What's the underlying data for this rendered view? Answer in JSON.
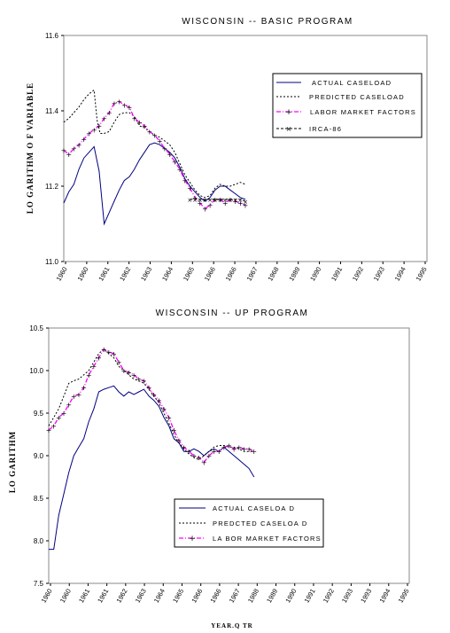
{
  "chart_data": [
    {
      "type": "line",
      "title": "WISCONSIN -- BASIC PROGRAM",
      "ylabel": "LO GARITHM O F VARIABLE",
      "xlabel": "",
      "ylim": [
        11.0,
        11.6
      ],
      "yticks": [
        "11.0",
        "11.2",
        "11.4",
        "11.6"
      ],
      "xlim": [
        1960,
        1996
      ],
      "x_tick_labels": [
        "1960",
        "1960",
        "1961",
        "1962",
        "1963",
        "1964",
        "1965",
        "1966",
        "1966",
        "1967",
        "1968",
        "1989",
        "1990",
        "1991",
        "1992",
        "1993",
        "1994",
        "1995"
      ],
      "legend": "top-right",
      "series": [
        {
          "name": "ACTUAL CASELOAD",
          "style": "solid",
          "color": "#000080",
          "points": [
            [
              1960,
              11.155
            ],
            [
              1960.5,
              11.185
            ],
            [
              1961,
              11.205
            ],
            [
              1961.5,
              11.245
            ],
            [
              1962,
              11.275
            ],
            [
              1962.5,
              11.29
            ],
            [
              1963,
              11.305
            ],
            [
              1963.5,
              11.24
            ],
            [
              1964,
              11.1
            ],
            [
              1964.5,
              11.13
            ],
            [
              1965,
              11.16
            ],
            [
              1965.5,
              11.19
            ],
            [
              1966,
              11.215
            ],
            [
              1966.5,
              11.225
            ],
            [
              1967,
              11.245
            ],
            [
              1967.5,
              11.27
            ],
            [
              1968,
              11.29
            ],
            [
              1968.5,
              11.31
            ],
            [
              1969,
              11.315
            ],
            [
              1969.5,
              11.31
            ],
            [
              1970,
              11.3
            ],
            [
              1970.5,
              11.29
            ],
            [
              1971,
              11.275
            ],
            [
              1971.5,
              11.25
            ],
            [
              1972,
              11.22
            ],
            [
              1972.5,
              11.2
            ],
            [
              1973,
              11.185
            ],
            [
              1973.5,
              11.17
            ],
            [
              1974,
              11.16
            ],
            [
              1974.5,
              11.17
            ],
            [
              1975,
              11.19
            ],
            [
              1975.5,
              11.2
            ],
            [
              1976,
              11.2
            ],
            [
              1976.5,
              11.19
            ],
            [
              1977,
              11.18
            ],
            [
              1977.5,
              11.17
            ],
            [
              1978,
              11.165
            ]
          ]
        },
        {
          "name": "PREDICTED CASELOAD",
          "style": "dashed",
          "color": "#000000",
          "points": [
            [
              1960,
              11.37
            ],
            [
              1960.5,
              11.38
            ],
            [
              1961,
              11.395
            ],
            [
              1961.5,
              11.41
            ],
            [
              1962,
              11.43
            ],
            [
              1962.5,
              11.445
            ],
            [
              1963,
              11.455
            ],
            [
              1963.3,
              11.375
            ],
            [
              1963.6,
              11.34
            ],
            [
              1964,
              11.34
            ],
            [
              1964.5,
              11.345
            ],
            [
              1965,
              11.37
            ],
            [
              1965.5,
              11.39
            ],
            [
              1966,
              11.395
            ],
            [
              1966.5,
              11.395
            ],
            [
              1967,
              11.385
            ],
            [
              1967.5,
              11.36
            ],
            [
              1968,
              11.355
            ],
            [
              1968.5,
              11.345
            ],
            [
              1969,
              11.335
            ],
            [
              1969.5,
              11.33
            ],
            [
              1970,
              11.32
            ],
            [
              1970.5,
              11.31
            ],
            [
              1971,
              11.29
            ],
            [
              1971.5,
              11.26
            ],
            [
              1972,
              11.23
            ],
            [
              1972.5,
              11.21
            ],
            [
              1973,
              11.19
            ],
            [
              1973.5,
              11.175
            ],
            [
              1974,
              11.17
            ],
            [
              1974.5,
              11.175
            ],
            [
              1975,
              11.195
            ],
            [
              1975.5,
              11.205
            ],
            [
              1976,
              11.2
            ],
            [
              1976.5,
              11.2
            ],
            [
              1977,
              11.205
            ],
            [
              1977.5,
              11.21
            ],
            [
              1978,
              11.205
            ]
          ]
        },
        {
          "name": "LABOR MARKET FACTORS",
          "style": "dashdot-marker",
          "color": "#ff00ff",
          "points": [
            [
              1960,
              11.295
            ],
            [
              1960.5,
              11.285
            ],
            [
              1961,
              11.3
            ],
            [
              1961.5,
              11.31
            ],
            [
              1962,
              11.325
            ],
            [
              1962.5,
              11.34
            ],
            [
              1963,
              11.35
            ],
            [
              1963.5,
              11.36
            ],
            [
              1964,
              11.38
            ],
            [
              1964.5,
              11.395
            ],
            [
              1965,
              11.42
            ],
            [
              1965.5,
              11.425
            ],
            [
              1966,
              11.415
            ],
            [
              1966.5,
              11.41
            ],
            [
              1967,
              11.38
            ],
            [
              1967.5,
              11.37
            ],
            [
              1968,
              11.36
            ],
            [
              1968.5,
              11.345
            ],
            [
              1969,
              11.335
            ],
            [
              1969.5,
              11.32
            ],
            [
              1970,
              11.3
            ],
            [
              1970.5,
              11.285
            ],
            [
              1971,
              11.265
            ],
            [
              1971.5,
              11.245
            ],
            [
              1972,
              11.215
            ],
            [
              1972.5,
              11.195
            ],
            [
              1973,
              11.17
            ],
            [
              1973.5,
              11.155
            ],
            [
              1974,
              11.14
            ],
            [
              1974.5,
              11.15
            ],
            [
              1975,
              11.165
            ],
            [
              1975.5,
              11.165
            ],
            [
              1976,
              11.155
            ],
            [
              1976.5,
              11.165
            ],
            [
              1977,
              11.16
            ],
            [
              1977.5,
              11.155
            ],
            [
              1978,
              11.15
            ]
          ]
        },
        {
          "name": "IRCA-86",
          "style": "marker-x",
          "color": "#000000",
          "points": [
            [
              1972.5,
              11.165
            ],
            [
              1973,
              11.165
            ],
            [
              1973.5,
              11.165
            ],
            [
              1974,
              11.165
            ],
            [
              1974.5,
              11.165
            ],
            [
              1975,
              11.165
            ],
            [
              1975.5,
              11.165
            ],
            [
              1976,
              11.165
            ],
            [
              1976.5,
              11.165
            ],
            [
              1977,
              11.165
            ],
            [
              1977.5,
              11.165
            ],
            [
              1978,
              11.16
            ]
          ]
        }
      ]
    },
    {
      "type": "line",
      "title": "WISCONSIN -- UP PROGRAM",
      "ylabel": "LO GARITHM",
      "xlabel": "YEAR.Q TR",
      "ylim": [
        7.5,
        10.5
      ],
      "yticks": [
        "7.5",
        "8.0",
        "8.5",
        "9.0",
        "9.5",
        "10.0",
        "10.5"
      ],
      "xlim": [
        1960,
        1996
      ],
      "x_tick_labels": [
        "1960",
        "1960",
        "1961",
        "1961",
        "1962",
        "1963",
        "1964",
        "1965",
        "1966",
        "1966",
        "1967",
        "1988",
        "1989",
        "1990",
        "1991",
        "1992",
        "1993",
        "1993",
        "1994",
        "1995"
      ],
      "legend": "bottom-center",
      "series": [
        {
          "name": "ACTUAL CASELOA D",
          "style": "solid",
          "color": "#000080",
          "points": [
            [
              1960,
              7.9
            ],
            [
              1960.5,
              7.9
            ],
            [
              1961,
              8.3
            ],
            [
              1961.5,
              8.55
            ],
            [
              1962,
              8.8
            ],
            [
              1962.5,
              9.0
            ],
            [
              1963,
              9.1
            ],
            [
              1963.5,
              9.2
            ],
            [
              1964,
              9.4
            ],
            [
              1964.5,
              9.55
            ],
            [
              1965,
              9.75
            ],
            [
              1965.5,
              9.78
            ],
            [
              1966,
              9.8
            ],
            [
              1966.5,
              9.82
            ],
            [
              1967,
              9.75
            ],
            [
              1967.5,
              9.7
            ],
            [
              1968,
              9.75
            ],
            [
              1968.5,
              9.72
            ],
            [
              1969,
              9.75
            ],
            [
              1969.5,
              9.78
            ],
            [
              1970,
              9.7
            ],
            [
              1970.5,
              9.65
            ],
            [
              1971,
              9.58
            ],
            [
              1971.5,
              9.45
            ],
            [
              1972,
              9.35
            ],
            [
              1972.5,
              9.2
            ],
            [
              1973,
              9.15
            ],
            [
              1973.5,
              9.05
            ],
            [
              1974,
              9.05
            ],
            [
              1974.5,
              9.08
            ],
            [
              1975,
              9.05
            ],
            [
              1975.5,
              9.0
            ],
            [
              1976,
              9.05
            ],
            [
              1976.5,
              9.08
            ],
            [
              1977,
              9.05
            ],
            [
              1977.5,
              9.1
            ],
            [
              1978,
              9.05
            ],
            [
              1978.5,
              9.0
            ],
            [
              1979,
              8.95
            ],
            [
              1979.5,
              8.9
            ],
            [
              1980,
              8.85
            ],
            [
              1980.5,
              8.75
            ]
          ]
        },
        {
          "name": "PREDCTED CASELOA D",
          "style": "dashed",
          "color": "#000000",
          "points": [
            [
              1960,
              9.35
            ],
            [
              1960.5,
              9.45
            ],
            [
              1961,
              9.55
            ],
            [
              1961.5,
              9.7
            ],
            [
              1962,
              9.85
            ],
            [
              1962.5,
              9.88
            ],
            [
              1963,
              9.9
            ],
            [
              1963.5,
              9.95
            ],
            [
              1964,
              10.0
            ],
            [
              1964.5,
              10.1
            ],
            [
              1965,
              10.2
            ],
            [
              1965.5,
              10.25
            ],
            [
              1966,
              10.2
            ],
            [
              1966.5,
              10.15
            ],
            [
              1967,
              10.05
            ],
            [
              1967.5,
              10.0
            ],
            [
              1968,
              9.95
            ],
            [
              1968.5,
              9.9
            ],
            [
              1969,
              9.88
            ],
            [
              1969.5,
              9.85
            ],
            [
              1970,
              9.78
            ],
            [
              1970.5,
              9.7
            ],
            [
              1971,
              9.62
            ],
            [
              1971.5,
              9.5
            ],
            [
              1972,
              9.38
            ],
            [
              1972.5,
              9.25
            ],
            [
              1973,
              9.15
            ],
            [
              1973.5,
              9.08
            ],
            [
              1974,
              9.02
            ],
            [
              1974.5,
              8.98
            ],
            [
              1975,
              8.95
            ],
            [
              1975.5,
              9.0
            ],
            [
              1976,
              9.05
            ],
            [
              1976.5,
              9.1
            ],
            [
              1977,
              9.12
            ],
            [
              1977.5,
              9.12
            ],
            [
              1978,
              9.1
            ],
            [
              1978.5,
              9.1
            ],
            [
              1979,
              9.08
            ],
            [
              1979.5,
              9.05
            ],
            [
              1980,
              9.05
            ],
            [
              1980.5,
              9.05
            ]
          ]
        },
        {
          "name": "LA BOR MARKET FACTORS",
          "style": "dashdot-marker",
          "color": "#ff00ff",
          "points": [
            [
              1960,
              9.3
            ],
            [
              1960.5,
              9.35
            ],
            [
              1961,
              9.45
            ],
            [
              1961.5,
              9.5
            ],
            [
              1962,
              9.6
            ],
            [
              1962.5,
              9.7
            ],
            [
              1963,
              9.72
            ],
            [
              1963.5,
              9.8
            ],
            [
              1964,
              9.95
            ],
            [
              1964.5,
              10.05
            ],
            [
              1965,
              10.15
            ],
            [
              1965.5,
              10.25
            ],
            [
              1966,
              10.22
            ],
            [
              1966.5,
              10.2
            ],
            [
              1967,
              10.1
            ],
            [
              1967.5,
              10.0
            ],
            [
              1968,
              9.98
            ],
            [
              1968.5,
              9.95
            ],
            [
              1969,
              9.9
            ],
            [
              1969.5,
              9.88
            ],
            [
              1970,
              9.8
            ],
            [
              1970.5,
              9.72
            ],
            [
              1971,
              9.65
            ],
            [
              1971.5,
              9.55
            ],
            [
              1972,
              9.45
            ],
            [
              1972.5,
              9.3
            ],
            [
              1973,
              9.18
            ],
            [
              1973.5,
              9.1
            ],
            [
              1974,
              9.05
            ],
            [
              1974.5,
              9.0
            ],
            [
              1975,
              8.98
            ],
            [
              1975.5,
              8.92
            ],
            [
              1976,
              9.0
            ],
            [
              1976.5,
              9.05
            ],
            [
              1977,
              9.05
            ],
            [
              1977.5,
              9.1
            ],
            [
              1978,
              9.12
            ],
            [
              1978.5,
              9.08
            ],
            [
              1979,
              9.1
            ],
            [
              1979.5,
              9.08
            ],
            [
              1980,
              9.08
            ],
            [
              1980.5,
              9.05
            ]
          ]
        }
      ]
    }
  ]
}
